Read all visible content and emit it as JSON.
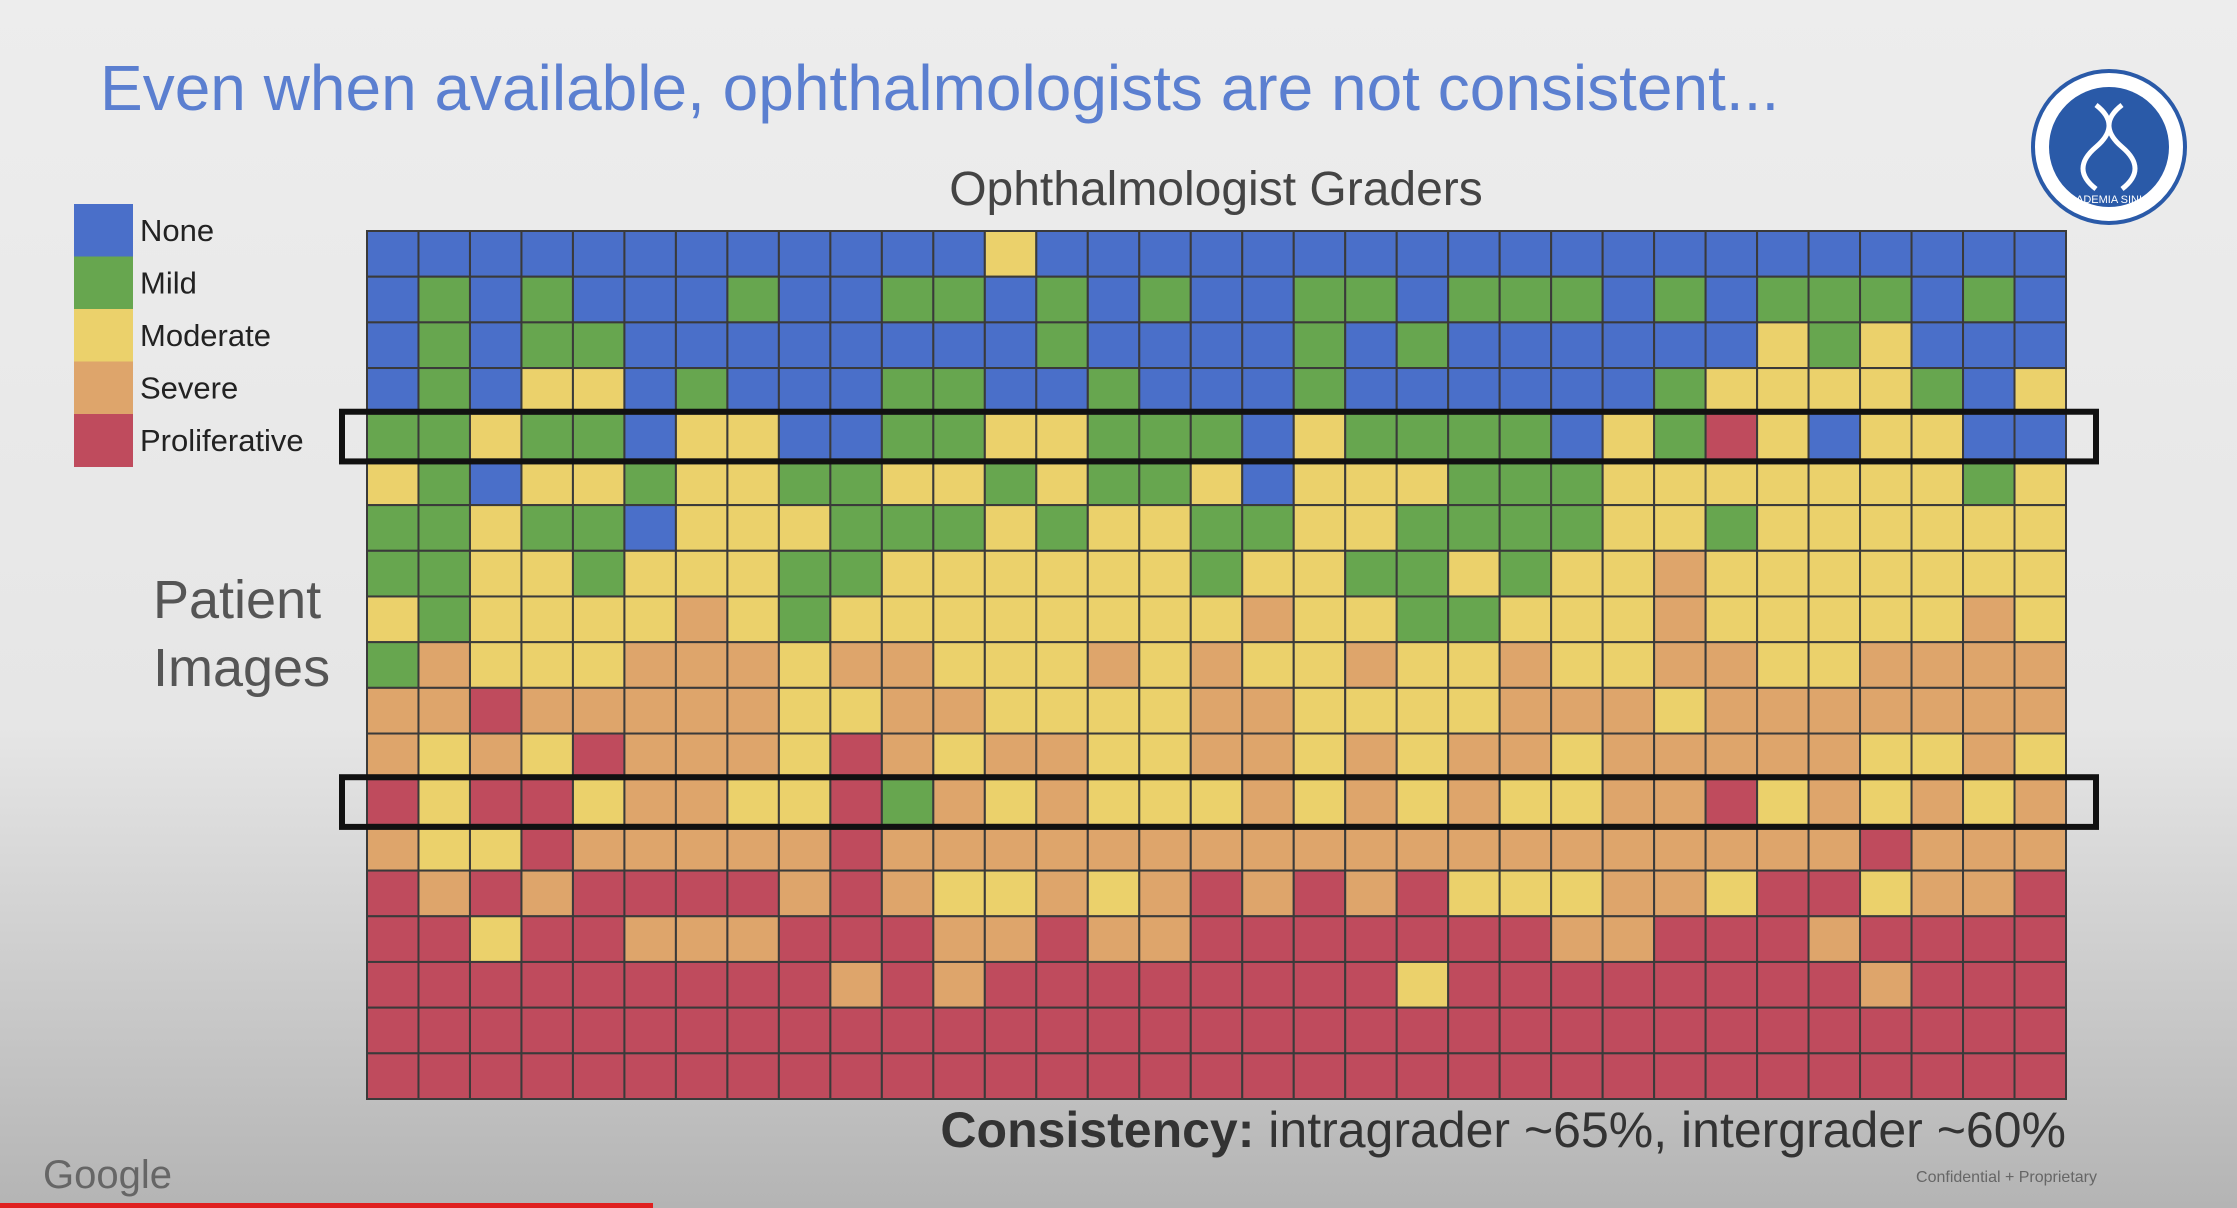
{
  "title": "Even when available, ophthalmologists are not consistent...",
  "logo_text": "ACADEMIA SINICA",
  "chart_data": {
    "type": "heatmap",
    "x_label": "Ophthalmologist Graders",
    "y_label": [
      "Patient",
      "Images"
    ],
    "levels": [
      {
        "name": "None",
        "color": "#4a6fc9"
      },
      {
        "name": "Mild",
        "color": "#67a64f"
      },
      {
        "name": "Moderate",
        "color": "#ebd16b"
      },
      {
        "name": "Severe",
        "color": "#dea56b"
      },
      {
        "name": "Proliferative",
        "color": "#bf4b5d"
      }
    ],
    "highlight_rows": [
      4,
      12
    ],
    "values": [
      [
        0,
        0,
        0,
        0,
        0,
        0,
        0,
        0,
        0,
        0,
        0,
        0,
        2,
        0,
        0,
        0,
        0,
        0,
        0,
        0,
        0,
        0,
        0,
        0,
        0,
        0,
        0,
        0,
        0,
        0,
        0,
        0,
        0
      ],
      [
        0,
        1,
        0,
        1,
        0,
        0,
        0,
        1,
        0,
        0,
        1,
        1,
        0,
        1,
        0,
        1,
        0,
        0,
        1,
        1,
        0,
        1,
        1,
        1,
        0,
        1,
        0,
        1,
        1,
        1,
        0,
        1,
        0
      ],
      [
        0,
        1,
        0,
        1,
        1,
        0,
        0,
        0,
        0,
        0,
        0,
        0,
        0,
        1,
        0,
        0,
        0,
        0,
        1,
        0,
        1,
        0,
        0,
        0,
        0,
        0,
        0,
        2,
        1,
        2,
        0,
        0,
        0
      ],
      [
        0,
        1,
        0,
        2,
        2,
        0,
        1,
        0,
        0,
        0,
        1,
        1,
        0,
        0,
        1,
        0,
        0,
        0,
        1,
        0,
        0,
        0,
        0,
        0,
        0,
        1,
        2,
        2,
        2,
        2,
        1,
        0,
        2
      ],
      [
        1,
        1,
        2,
        1,
        1,
        0,
        2,
        2,
        0,
        0,
        1,
        1,
        2,
        2,
        1,
        1,
        1,
        0,
        2,
        1,
        1,
        1,
        1,
        0,
        2,
        1,
        4,
        2,
        0,
        2,
        2,
        0,
        0
      ],
      [
        2,
        1,
        0,
        2,
        2,
        1,
        2,
        2,
        1,
        1,
        2,
        2,
        1,
        2,
        1,
        1,
        2,
        0,
        2,
        2,
        2,
        1,
        1,
        1,
        2,
        2,
        2,
        2,
        2,
        2,
        2,
        1,
        2
      ],
      [
        1,
        1,
        2,
        1,
        1,
        0,
        2,
        2,
        2,
        1,
        1,
        1,
        2,
        1,
        2,
        2,
        1,
        1,
        2,
        2,
        1,
        1,
        1,
        1,
        2,
        2,
        1,
        2,
        2,
        2,
        2,
        2,
        2
      ],
      [
        1,
        1,
        2,
        2,
        1,
        2,
        2,
        2,
        1,
        1,
        2,
        2,
        2,
        2,
        2,
        2,
        1,
        2,
        2,
        1,
        1,
        2,
        1,
        2,
        2,
        3,
        2,
        2,
        2,
        2,
        2,
        2,
        2
      ],
      [
        2,
        1,
        2,
        2,
        2,
        2,
        3,
        2,
        1,
        2,
        2,
        2,
        2,
        2,
        2,
        2,
        2,
        3,
        2,
        2,
        1,
        1,
        2,
        2,
        2,
        3,
        2,
        2,
        2,
        2,
        2,
        3,
        2
      ],
      [
        1,
        3,
        2,
        2,
        2,
        3,
        3,
        3,
        2,
        3,
        3,
        2,
        2,
        2,
        3,
        2,
        3,
        2,
        2,
        3,
        2,
        2,
        3,
        2,
        2,
        3,
        3,
        2,
        2,
        3,
        3,
        3,
        3
      ],
      [
        3,
        3,
        4,
        3,
        3,
        3,
        3,
        3,
        2,
        2,
        3,
        3,
        2,
        2,
        2,
        2,
        3,
        3,
        2,
        2,
        2,
        2,
        3,
        3,
        3,
        2,
        3,
        3,
        3,
        3,
        3,
        3,
        3
      ],
      [
        3,
        2,
        3,
        2,
        4,
        3,
        3,
        3,
        2,
        4,
        3,
        2,
        3,
        3,
        2,
        2,
        3,
        3,
        2,
        3,
        2,
        3,
        3,
        2,
        3,
        3,
        3,
        3,
        3,
        2,
        2,
        3,
        2
      ],
      [
        4,
        2,
        4,
        4,
        2,
        3,
        3,
        2,
        2,
        4,
        1,
        3,
        2,
        3,
        2,
        2,
        2,
        3,
        2,
        3,
        2,
        3,
        2,
        2,
        3,
        3,
        4,
        2,
        3,
        2,
        3,
        2,
        3
      ],
      [
        3,
        2,
        2,
        4,
        3,
        3,
        3,
        3,
        3,
        4,
        3,
        3,
        3,
        3,
        3,
        3,
        3,
        3,
        3,
        3,
        3,
        3,
        3,
        3,
        3,
        3,
        3,
        3,
        3,
        4,
        3,
        3,
        3
      ],
      [
        4,
        3,
        4,
        3,
        4,
        4,
        4,
        4,
        3,
        4,
        3,
        2,
        2,
        3,
        2,
        3,
        4,
        3,
        4,
        3,
        4,
        2,
        2,
        2,
        3,
        3,
        2,
        4,
        4,
        2,
        3,
        3,
        4
      ],
      [
        4,
        4,
        2,
        4,
        4,
        3,
        3,
        3,
        4,
        4,
        4,
        3,
        3,
        4,
        3,
        3,
        4,
        4,
        4,
        4,
        4,
        4,
        4,
        3,
        3,
        4,
        4,
        4,
        3,
        4,
        4,
        4,
        4
      ],
      [
        4,
        4,
        4,
        4,
        4,
        4,
        4,
        4,
        4,
        3,
        4,
        3,
        4,
        4,
        4,
        4,
        4,
        4,
        4,
        4,
        2,
        4,
        4,
        4,
        4,
        4,
        4,
        4,
        4,
        3,
        4,
        4,
        4
      ],
      [
        4,
        4,
        4,
        4,
        4,
        4,
        4,
        4,
        4,
        4,
        4,
        4,
        4,
        4,
        4,
        4,
        4,
        4,
        4,
        4,
        4,
        4,
        4,
        4,
        4,
        4,
        4,
        4,
        4,
        4,
        4,
        4,
        4
      ],
      [
        4,
        4,
        4,
        4,
        4,
        4,
        4,
        4,
        4,
        4,
        4,
        4,
        4,
        4,
        4,
        4,
        4,
        4,
        4,
        4,
        4,
        4,
        4,
        4,
        4,
        4,
        4,
        4,
        4,
        4,
        4,
        4,
        4
      ]
    ]
  },
  "consistency": {
    "label": "Consistency:",
    "text": " intragrader ~65%, intergrader ~60%"
  },
  "footer": {
    "brand": "Google",
    "note": "Confidential + Proprietary"
  }
}
